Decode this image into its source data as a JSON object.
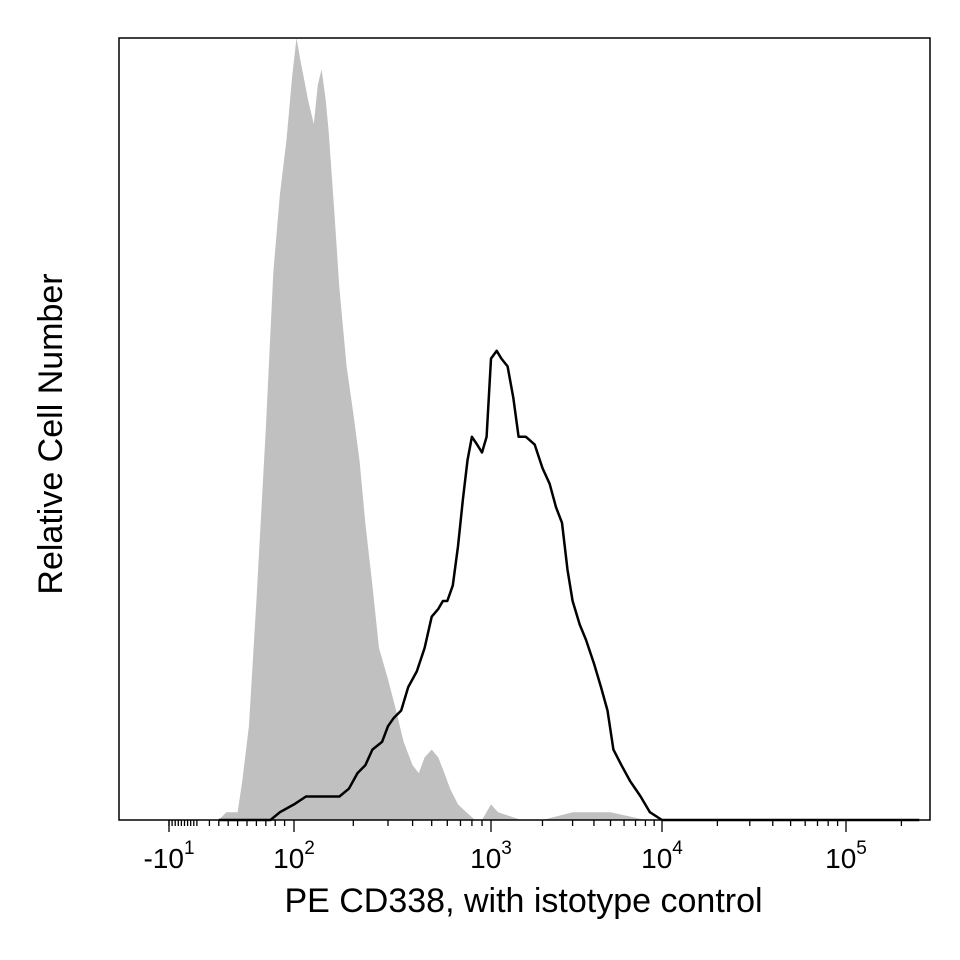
{
  "chart_data": {
    "type": "area",
    "title": "",
    "xlabel": "PE CD338, with istotype control",
    "ylabel": "Relative Cell Number",
    "x_scale": "biexponential (log above ~10^2)",
    "xlim": [
      -10,
      250000
    ],
    "ylim": [
      0,
      100
    ],
    "y_ticks": "none",
    "grid": false,
    "x_ticks": [
      {
        "value": -10,
        "base": "-10",
        "exp": "1"
      },
      {
        "value": 100,
        "base": "10",
        "exp": "2"
      },
      {
        "value": 1000,
        "base": "10",
        "exp": "3"
      },
      {
        "value": 10000,
        "base": "10",
        "exp": "4"
      },
      {
        "value": 100000,
        "base": "10",
        "exp": "5"
      }
    ],
    "series": [
      {
        "style": "filled",
        "color": "#c0c0c0",
        "x": [
          20,
          28,
          32,
          40,
          45,
          52,
          60,
          70,
          78,
          85,
          92,
          98,
          103,
          108,
          112,
          118,
          126,
          132,
          138,
          145,
          150,
          160,
          170,
          185,
          200,
          215,
          230,
          250,
          270,
          300,
          330,
          360,
          400,
          430,
          460,
          500,
          540,
          580,
          620,
          680,
          750,
          830,
          900,
          1000,
          1100,
          1500,
          2000,
          3000,
          5000,
          8000
        ],
        "y": [
          0,
          1,
          1,
          1,
          5,
          12,
          28,
          50,
          70,
          80,
          87,
          95,
          100,
          97,
          95,
          92,
          89,
          94,
          96,
          92,
          88,
          78,
          68,
          58,
          52,
          46,
          38,
          30,
          22,
          18,
          14,
          10,
          7,
          6,
          8,
          9,
          8,
          6,
          4,
          2,
          1,
          0,
          0,
          2,
          1,
          0,
          0,
          1,
          1,
          0
        ]
      },
      {
        "style": "outline",
        "color": "#000000",
        "x": [
          20,
          60,
          75,
          85,
          100,
          115,
          130,
          150,
          170,
          190,
          210,
          230,
          250,
          280,
          300,
          320,
          350,
          380,
          420,
          460,
          500,
          540,
          570,
          600,
          640,
          680,
          720,
          760,
          800,
          850,
          900,
          950,
          1000,
          1080,
          1150,
          1250,
          1350,
          1450,
          1600,
          1800,
          2000,
          2200,
          2400,
          2600,
          2800,
          3000,
          3300,
          3600,
          4000,
          4400,
          4800,
          5200,
          5800,
          6500,
          7500,
          8500,
          10000,
          12000,
          14000,
          17000,
          20000,
          250000
        ],
        "y": [
          0,
          0,
          0,
          1,
          2,
          3,
          3,
          3,
          3,
          4,
          6,
          7,
          9,
          10,
          12,
          13,
          14,
          17,
          19,
          22,
          26,
          27,
          28,
          28,
          30,
          35,
          41,
          46,
          49,
          48,
          47,
          49,
          59,
          60,
          59,
          58,
          54,
          49,
          49,
          48,
          45,
          43,
          40,
          38,
          32,
          28,
          25,
          23,
          20,
          17,
          14,
          9,
          7,
          5,
          3,
          1,
          0,
          0,
          0,
          0,
          0,
          0
        ]
      }
    ]
  }
}
